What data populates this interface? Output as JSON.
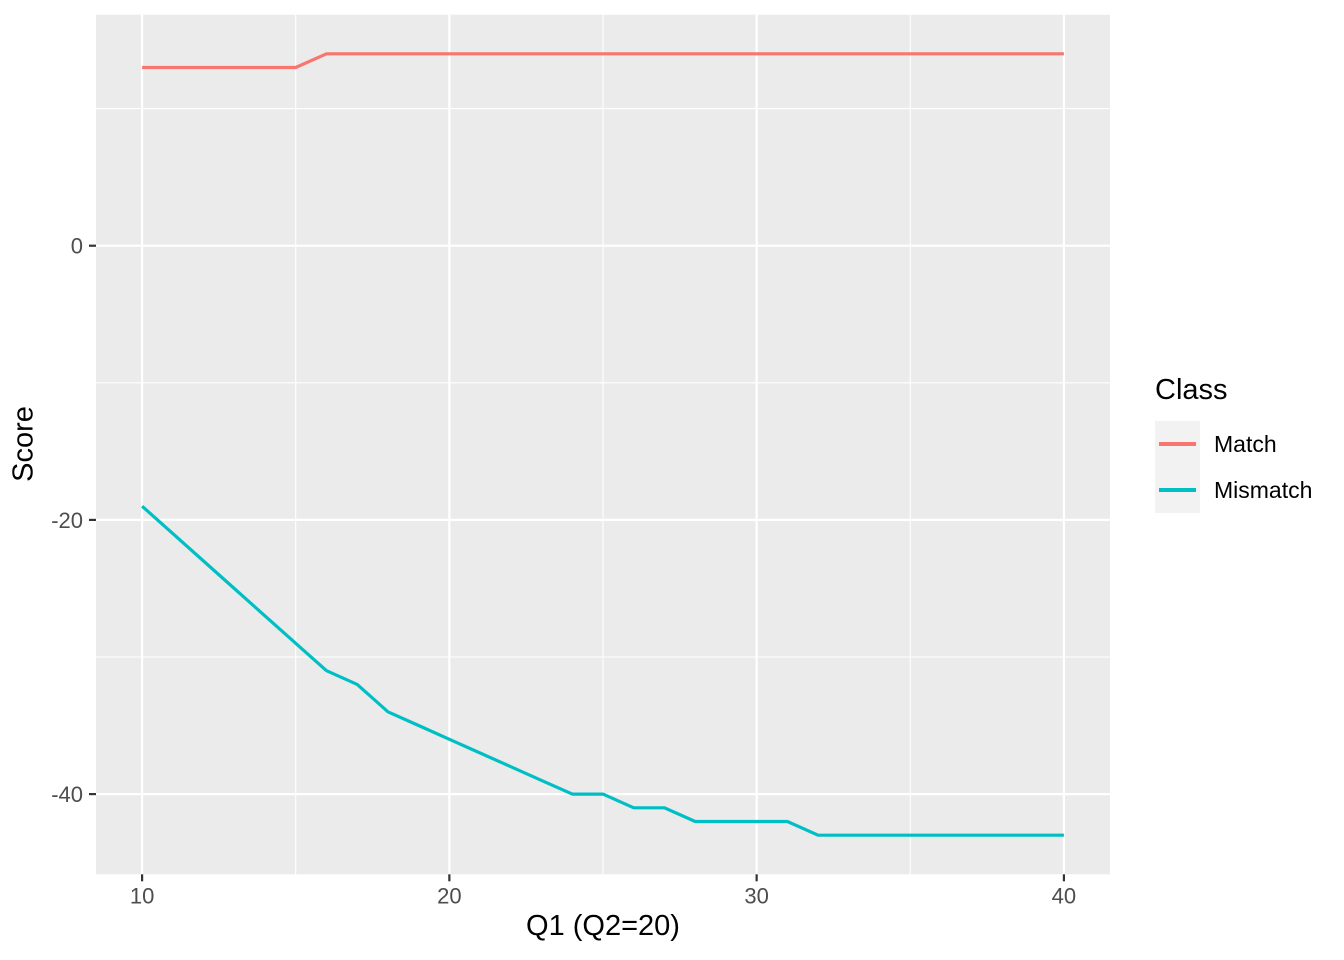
{
  "chart_data": {
    "type": "line",
    "title": "",
    "xlabel": "Q1 (Q2=20)",
    "ylabel": "Score",
    "x": [
      10,
      11,
      12,
      13,
      14,
      15,
      16,
      17,
      18,
      19,
      20,
      21,
      22,
      23,
      24,
      25,
      26,
      27,
      28,
      29,
      30,
      31,
      32,
      33,
      34,
      35,
      36,
      37,
      38,
      39,
      40
    ],
    "series": [
      {
        "name": "Match",
        "color": "#F8766D",
        "values": [
          13,
          13,
          13,
          13,
          13,
          13,
          14,
          14,
          14,
          14,
          14,
          14,
          14,
          14,
          14,
          14,
          14,
          14,
          14,
          14,
          14,
          14,
          14,
          14,
          14,
          14,
          14,
          14,
          14,
          14,
          14
        ]
      },
      {
        "name": "Mismatch",
        "color": "#00BFC4",
        "values": [
          -19,
          -21,
          -23,
          -25,
          -27,
          -29,
          -31,
          -32,
          -34,
          -35,
          -36,
          -37,
          -38,
          -39,
          -40,
          -40,
          -41,
          -41,
          -42,
          -42,
          -42,
          -42,
          -43,
          -43,
          -43,
          -43,
          -43,
          -43,
          -43,
          -43,
          -43
        ]
      }
    ],
    "xlim": [
      8.5,
      41.5
    ],
    "ylim": [
      -45.85,
      16.85
    ],
    "x_major_ticks": [
      10,
      20,
      30,
      40
    ],
    "x_minor_ticks": [
      15,
      25,
      35
    ],
    "y_major_ticks": [
      0,
      -20,
      -40
    ],
    "y_minor_ticks": [
      10,
      -10,
      -30
    ],
    "grid": true,
    "legend": {
      "title": "Class",
      "position": "right",
      "entries": [
        "Match",
        "Mismatch"
      ]
    },
    "style": {
      "panel_bg": "#EBEBEB",
      "grid_color": "#FFFFFF",
      "tick_color": "#333333",
      "tick_label_color": "#4D4D4D",
      "legend_key_bg": "#F2F2F2"
    }
  }
}
